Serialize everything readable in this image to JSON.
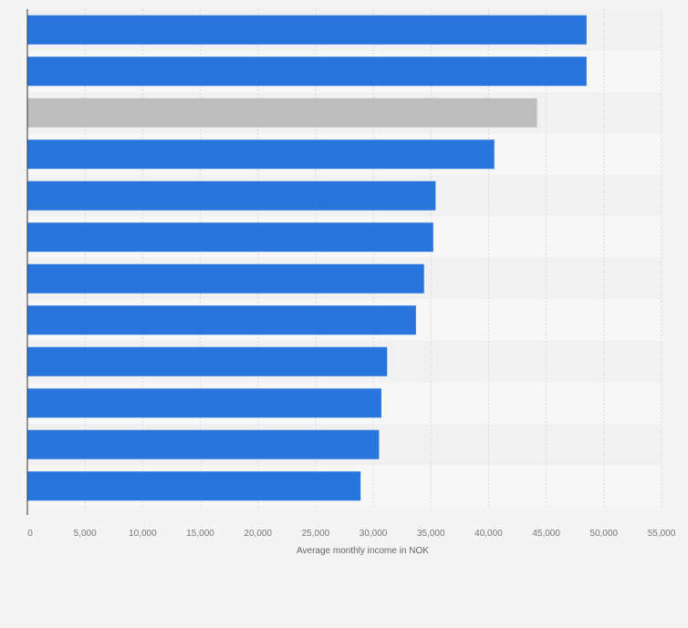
{
  "chart_data": {
    "type": "bar",
    "orientation": "horizontal",
    "categories": [
      "",
      "",
      "",
      "",
      "",
      "",
      "",
      "",
      "",
      "",
      "",
      ""
    ],
    "values": [
      48500,
      48500,
      44200,
      40500,
      35400,
      35200,
      34400,
      33700,
      31200,
      30700,
      30500,
      28900
    ],
    "highlight_index": 2,
    "xlabel": "Average monthly income in NOK",
    "xlim": [
      0,
      55000
    ],
    "xticks": [
      0,
      5000,
      10000,
      15000,
      20000,
      25000,
      30000,
      35000,
      40000,
      45000,
      50000,
      55000
    ],
    "xtick_labels": [
      "0",
      "5,000",
      "10,000",
      "15,000",
      "20,000",
      "25,000",
      "30,000",
      "35,000",
      "40,000",
      "45,000",
      "50,000",
      "55,000"
    ],
    "grid": true,
    "colors": {
      "bar": "#2876dd",
      "highlight": "#bdbdbd",
      "band_light": "#f7f7f7",
      "band_dark": "#f1f1f1",
      "gridline": "#d9d9d9",
      "axis": "#333333"
    }
  }
}
